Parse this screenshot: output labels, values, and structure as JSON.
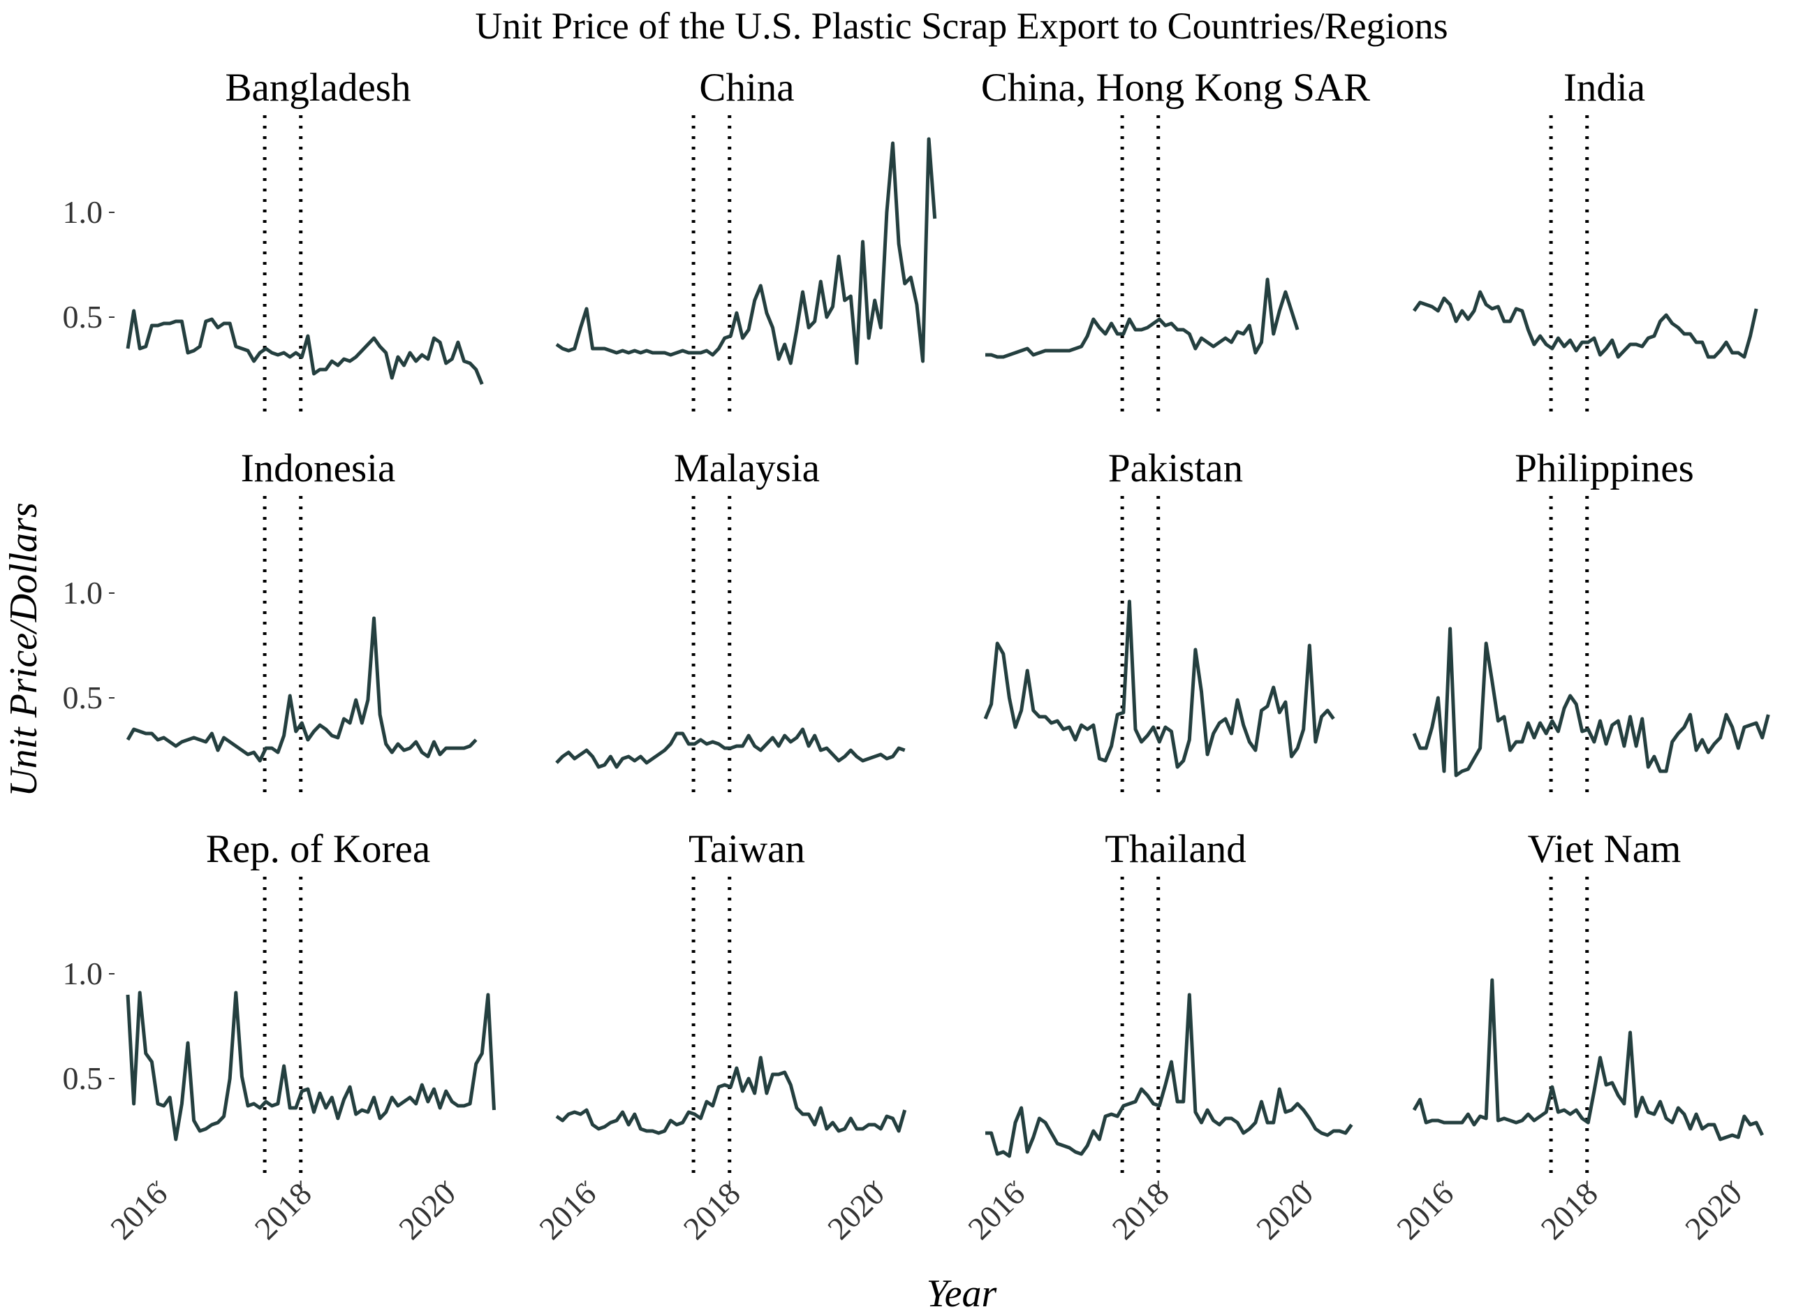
{
  "chart_data": {
    "type": "line",
    "title": "Unit Price of the U.S. Plastic Scrap Export to Countries/Regions",
    "xlabel": "Year",
    "ylabel": "Unit Price/Dollars",
    "line_color": "#243f3f",
    "vline_color": "#000000",
    "xlim": [
      2015.6,
      2020.88
    ],
    "ylim": [
      0.08,
      1.38
    ],
    "x_ticks": [
      2016,
      2018,
      2020
    ],
    "x_tick_labels": [
      "2016",
      "2018",
      "2020"
    ],
    "y_ticks": [
      0.5,
      1.0
    ],
    "y_tick_labels": [
      "0.5",
      "1.0"
    ],
    "vertical_lines_x": [
      2017.5,
      2018.0
    ],
    "x_start": 2015.6,
    "x_step": 0.0833,
    "grid": false,
    "panels": [
      {
        "name": "Bangladesh",
        "values": [
          0.35,
          0.53,
          0.35,
          0.36,
          0.46,
          0.46,
          0.47,
          0.47,
          0.48,
          0.48,
          0.33,
          0.34,
          0.36,
          0.48,
          0.49,
          0.45,
          0.47,
          0.47,
          0.36,
          0.35,
          0.34,
          0.29,
          0.33,
          0.35,
          0.33,
          0.32,
          0.33,
          0.31,
          0.33,
          0.31,
          0.41,
          0.23,
          0.25,
          0.25,
          0.29,
          0.27,
          0.3,
          0.29,
          0.31,
          0.34,
          0.37,
          0.4,
          0.36,
          0.33,
          0.21,
          0.31,
          0.27,
          0.33,
          0.29,
          0.32,
          0.3,
          0.4,
          0.38,
          0.28,
          0.3,
          0.38,
          0.29,
          0.28,
          0.25,
          0.18
        ]
      },
      {
        "name": "China",
        "values": [
          0.37,
          0.35,
          0.34,
          0.35,
          0.45,
          0.54,
          0.35,
          0.35,
          0.35,
          0.34,
          0.33,
          0.34,
          0.33,
          0.34,
          0.33,
          0.34,
          0.33,
          0.33,
          0.33,
          0.32,
          0.33,
          0.34,
          0.33,
          0.33,
          0.33,
          0.34,
          0.32,
          0.35,
          0.4,
          0.41,
          0.52,
          0.4,
          0.44,
          0.58,
          0.65,
          0.52,
          0.45,
          0.3,
          0.37,
          0.28,
          0.44,
          0.62,
          0.45,
          0.48,
          0.67,
          0.5,
          0.55,
          0.79,
          0.58,
          0.6,
          0.28,
          0.86,
          0.4,
          0.58,
          0.45,
          1.0,
          1.33,
          0.85,
          0.66,
          0.69,
          0.56,
          0.29,
          1.35,
          0.97
        ]
      },
      {
        "name": "China, Hong Kong SAR",
        "values": [
          0.32,
          0.32,
          0.31,
          0.31,
          0.32,
          0.33,
          0.34,
          0.35,
          0.32,
          0.33,
          0.34,
          0.34,
          0.34,
          0.34,
          0.34,
          0.35,
          0.36,
          0.41,
          0.49,
          0.45,
          0.42,
          0.47,
          0.42,
          0.42,
          0.49,
          0.44,
          0.44,
          0.45,
          0.47,
          0.49,
          0.46,
          0.47,
          0.44,
          0.44,
          0.42,
          0.35,
          0.4,
          0.38,
          0.36,
          0.38,
          0.4,
          0.38,
          0.43,
          0.42,
          0.46,
          0.33,
          0.38,
          0.68,
          0.42,
          0.53,
          0.62,
          0.53,
          0.44
        ]
      },
      {
        "name": "India",
        "values": [
          0.53,
          0.57,
          0.56,
          0.55,
          0.53,
          0.59,
          0.56,
          0.48,
          0.53,
          0.49,
          0.53,
          0.62,
          0.56,
          0.54,
          0.55,
          0.48,
          0.48,
          0.54,
          0.53,
          0.44,
          0.37,
          0.41,
          0.37,
          0.35,
          0.4,
          0.36,
          0.39,
          0.34,
          0.38,
          0.38,
          0.4,
          0.32,
          0.35,
          0.39,
          0.31,
          0.34,
          0.37,
          0.37,
          0.36,
          0.4,
          0.41,
          0.48,
          0.51,
          0.47,
          0.45,
          0.42,
          0.42,
          0.38,
          0.38,
          0.31,
          0.31,
          0.34,
          0.38,
          0.33,
          0.33,
          0.31,
          0.41,
          0.54
        ]
      },
      {
        "name": "Indonesia",
        "values": [
          0.3,
          0.35,
          0.34,
          0.33,
          0.33,
          0.3,
          0.31,
          0.29,
          0.27,
          0.29,
          0.3,
          0.31,
          0.3,
          0.29,
          0.33,
          0.25,
          0.31,
          0.29,
          0.27,
          0.25,
          0.23,
          0.24,
          0.2,
          0.26,
          0.26,
          0.24,
          0.32,
          0.51,
          0.34,
          0.38,
          0.3,
          0.34,
          0.37,
          0.35,
          0.32,
          0.31,
          0.4,
          0.38,
          0.49,
          0.38,
          0.49,
          0.88,
          0.42,
          0.28,
          0.24,
          0.28,
          0.25,
          0.26,
          0.29,
          0.24,
          0.22,
          0.29,
          0.23,
          0.26,
          0.26,
          0.26,
          0.26,
          0.27,
          0.3
        ]
      },
      {
        "name": "Malaysia",
        "values": [
          0.19,
          0.22,
          0.24,
          0.21,
          0.23,
          0.25,
          0.22,
          0.17,
          0.18,
          0.22,
          0.17,
          0.21,
          0.22,
          0.2,
          0.22,
          0.19,
          0.21,
          0.23,
          0.25,
          0.28,
          0.33,
          0.33,
          0.28,
          0.28,
          0.3,
          0.28,
          0.29,
          0.28,
          0.26,
          0.26,
          0.27,
          0.27,
          0.32,
          0.27,
          0.25,
          0.28,
          0.31,
          0.27,
          0.32,
          0.29,
          0.31,
          0.35,
          0.27,
          0.32,
          0.25,
          0.26,
          0.23,
          0.2,
          0.22,
          0.25,
          0.22,
          0.2,
          0.21,
          0.22,
          0.23,
          0.21,
          0.22,
          0.26,
          0.25
        ]
      },
      {
        "name": "Pakistan",
        "values": [
          0.4,
          0.47,
          0.76,
          0.71,
          0.5,
          0.36,
          0.44,
          0.63,
          0.44,
          0.41,
          0.41,
          0.38,
          0.39,
          0.35,
          0.36,
          0.3,
          0.37,
          0.35,
          0.37,
          0.21,
          0.2,
          0.27,
          0.42,
          0.43,
          0.96,
          0.35,
          0.29,
          0.32,
          0.36,
          0.29,
          0.36,
          0.34,
          0.17,
          0.2,
          0.3,
          0.73,
          0.53,
          0.23,
          0.33,
          0.38,
          0.4,
          0.33,
          0.49,
          0.37,
          0.29,
          0.25,
          0.44,
          0.46,
          0.55,
          0.43,
          0.48,
          0.22,
          0.26,
          0.35,
          0.75,
          0.29,
          0.41,
          0.44,
          0.4
        ]
      },
      {
        "name": "Philippines",
        "values": [
          0.33,
          0.26,
          0.26,
          0.36,
          0.5,
          0.15,
          0.83,
          0.13,
          0.15,
          0.16,
          0.21,
          0.26,
          0.76,
          0.58,
          0.39,
          0.41,
          0.25,
          0.29,
          0.29,
          0.38,
          0.31,
          0.38,
          0.33,
          0.39,
          0.34,
          0.45,
          0.51,
          0.47,
          0.34,
          0.35,
          0.29,
          0.39,
          0.28,
          0.37,
          0.39,
          0.27,
          0.41,
          0.27,
          0.4,
          0.17,
          0.22,
          0.15,
          0.15,
          0.29,
          0.33,
          0.36,
          0.42,
          0.25,
          0.3,
          0.24,
          0.28,
          0.31,
          0.42,
          0.36,
          0.26,
          0.36,
          0.37,
          0.38,
          0.31,
          0.42
        ]
      },
      {
        "name": "Rep. of Korea",
        "values": [
          0.9,
          0.38,
          0.91,
          0.62,
          0.58,
          0.38,
          0.37,
          0.41,
          0.21,
          0.38,
          0.67,
          0.3,
          0.25,
          0.26,
          0.28,
          0.29,
          0.32,
          0.5,
          0.91,
          0.51,
          0.37,
          0.38,
          0.36,
          0.39,
          0.37,
          0.38,
          0.56,
          0.36,
          0.36,
          0.44,
          0.45,
          0.34,
          0.43,
          0.36,
          0.41,
          0.31,
          0.4,
          0.46,
          0.33,
          0.35,
          0.34,
          0.41,
          0.31,
          0.34,
          0.41,
          0.37,
          0.39,
          0.41,
          0.38,
          0.47,
          0.39,
          0.45,
          0.36,
          0.44,
          0.39,
          0.37,
          0.37,
          0.38,
          0.57,
          0.62,
          0.9,
          0.35
        ]
      },
      {
        "name": "Taiwan",
        "values": [
          0.32,
          0.3,
          0.33,
          0.34,
          0.33,
          0.35,
          0.28,
          0.26,
          0.27,
          0.29,
          0.3,
          0.34,
          0.28,
          0.33,
          0.26,
          0.25,
          0.25,
          0.24,
          0.25,
          0.3,
          0.28,
          0.29,
          0.34,
          0.33,
          0.31,
          0.39,
          0.37,
          0.46,
          0.47,
          0.46,
          0.55,
          0.44,
          0.5,
          0.43,
          0.6,
          0.43,
          0.52,
          0.52,
          0.53,
          0.47,
          0.36,
          0.33,
          0.33,
          0.28,
          0.36,
          0.26,
          0.29,
          0.25,
          0.26,
          0.31,
          0.26,
          0.26,
          0.28,
          0.28,
          0.26,
          0.32,
          0.31,
          0.25,
          0.35
        ]
      },
      {
        "name": "Thailand",
        "values": [
          0.24,
          0.24,
          0.14,
          0.15,
          0.13,
          0.29,
          0.36,
          0.15,
          0.22,
          0.31,
          0.29,
          0.24,
          0.19,
          0.18,
          0.17,
          0.15,
          0.14,
          0.18,
          0.25,
          0.21,
          0.32,
          0.33,
          0.32,
          0.37,
          0.38,
          0.39,
          0.45,
          0.42,
          0.38,
          0.37,
          0.47,
          0.58,
          0.39,
          0.39,
          0.9,
          0.34,
          0.29,
          0.35,
          0.3,
          0.28,
          0.31,
          0.31,
          0.29,
          0.24,
          0.26,
          0.29,
          0.39,
          0.29,
          0.29,
          0.45,
          0.34,
          0.35,
          0.38,
          0.35,
          0.31,
          0.26,
          0.24,
          0.23,
          0.25,
          0.25,
          0.24,
          0.28
        ]
      },
      {
        "name": "Viet Nam",
        "values": [
          0.35,
          0.4,
          0.29,
          0.3,
          0.3,
          0.29,
          0.29,
          0.29,
          0.29,
          0.33,
          0.28,
          0.32,
          0.31,
          0.97,
          0.3,
          0.31,
          0.3,
          0.29,
          0.3,
          0.33,
          0.3,
          0.32,
          0.34,
          0.46,
          0.34,
          0.35,
          0.33,
          0.35,
          0.31,
          0.29,
          0.44,
          0.6,
          0.47,
          0.48,
          0.42,
          0.38,
          0.72,
          0.32,
          0.41,
          0.34,
          0.33,
          0.39,
          0.31,
          0.29,
          0.36,
          0.33,
          0.26,
          0.33,
          0.26,
          0.28,
          0.28,
          0.21,
          0.22,
          0.23,
          0.22,
          0.32,
          0.28,
          0.29,
          0.23
        ]
      }
    ]
  }
}
